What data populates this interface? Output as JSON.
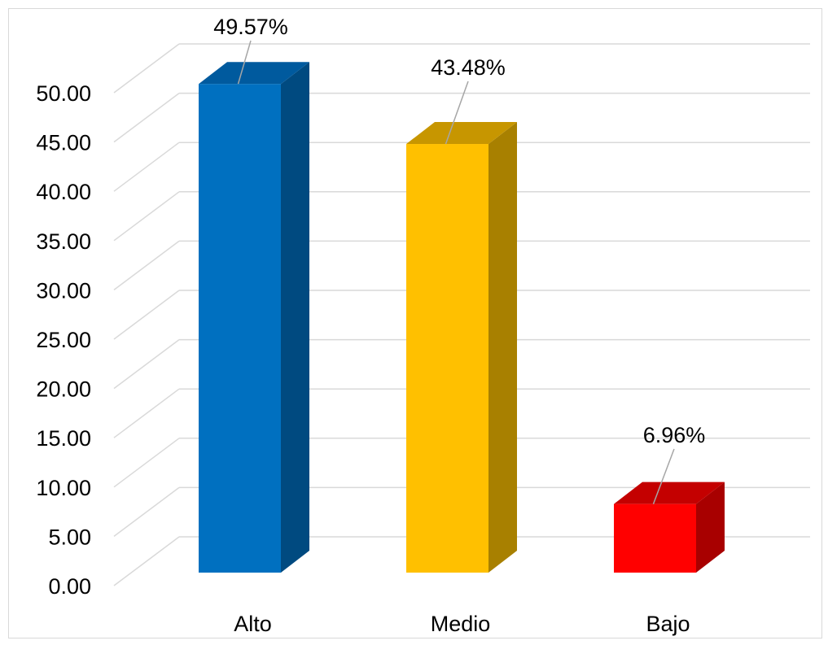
{
  "chart_data": {
    "type": "bar",
    "style": "3d-column",
    "categories": [
      "Alto",
      "Medio",
      "Bajo"
    ],
    "values": [
      49.57,
      43.48,
      6.96
    ],
    "data_labels": [
      "49.57%",
      "43.48%",
      "6.96%"
    ],
    "ylim": [
      0,
      50
    ],
    "yticks": [
      0,
      5,
      10,
      15,
      20,
      25,
      30,
      35,
      40,
      45,
      50
    ],
    "ytick_labels": [
      "0.00",
      "5.00",
      "10.00",
      "15.00",
      "20.00",
      "25.00",
      "30.00",
      "35.00",
      "40.00",
      "45.00",
      "50.00"
    ],
    "grid": true,
    "legend": "none",
    "colors": [
      {
        "front": "#0070C0",
        "side": "#004A80",
        "top": "#005A9E"
      },
      {
        "front": "#FFC000",
        "side": "#A88000",
        "top": "#C79600"
      },
      {
        "front": "#FF0000",
        "side": "#A80000",
        "top": "#C40000"
      }
    ],
    "gridline_color": "#d9d9d9",
    "leader_line_color": "#a6a6a6"
  }
}
